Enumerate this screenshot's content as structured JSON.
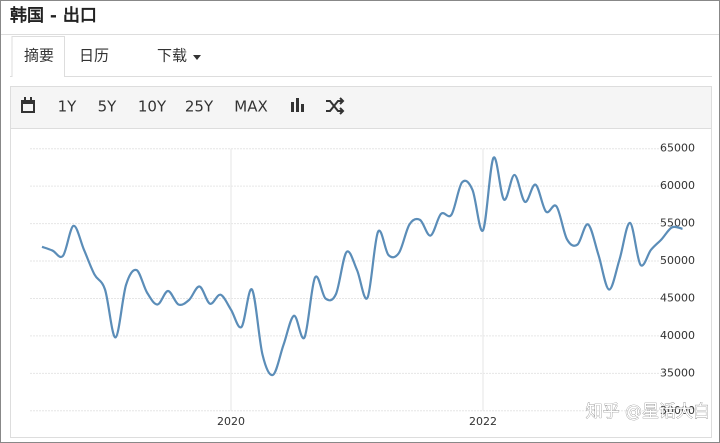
{
  "header": {
    "title": "韩国 - 出口"
  },
  "tabs": [
    "摘要",
    "日历",
    "下载"
  ],
  "toolbar": [
    "1Y",
    "5Y",
    "10Y",
    "25Y",
    "MAX"
  ],
  "chart_data": {
    "type": "line",
    "categories": [
      null,
      null,
      null,
      null,
      null,
      null,
      null,
      null,
      null,
      null,
      null,
      null,
      null,
      null,
      null,
      null,
      null,
      null,
      "2020",
      null,
      null,
      null,
      null,
      null,
      null,
      null,
      null,
      null,
      null,
      null,
      null,
      null,
      null,
      null,
      null,
      null,
      null,
      null,
      null,
      null,
      null,
      null,
      "2022",
      null,
      null,
      null,
      null,
      null,
      null,
      null,
      null,
      null,
      null,
      null,
      null,
      null,
      null,
      null,
      null,
      null,
      null,
      null
    ],
    "values": [
      51900,
      51400,
      50700,
      54700,
      51500,
      48200,
      46200,
      39800,
      46800,
      48800,
      45800,
      44200,
      46000,
      44200,
      44800,
      46600,
      44300,
      45500,
      43500,
      41200,
      46200,
      37500,
      34800,
      38800,
      42700,
      39800,
      47800,
      45000,
      45600,
      51200,
      48800,
      45100,
      53900,
      50800,
      51100,
      54900,
      55500,
      53400,
      56300,
      56200,
      60500,
      59500,
      54100,
      63800,
      58200,
      61500,
      57900,
      60200,
      56600,
      57300,
      52900,
      52200,
      54900,
      50800,
      46200,
      50200,
      55100,
      49500,
      51500,
      52900,
      54500,
      54300
    ],
    "color": "#5b8db8",
    "ylim": [
      26500,
      65900
    ],
    "yticks": [
      30000,
      35000,
      40000,
      45000,
      50000,
      55000,
      60000,
      65000
    ],
    "grid": true
  },
  "watermark": "知乎 @星话大白"
}
